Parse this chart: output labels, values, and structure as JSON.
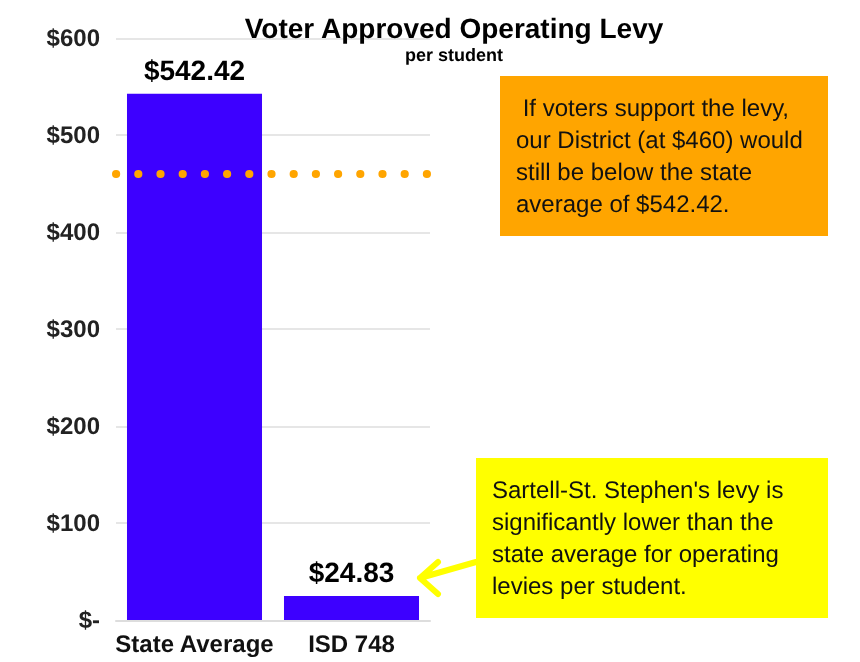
{
  "chart_data": {
    "type": "bar",
    "title": "Voter Approved Operating Levy",
    "subtitle": "per student",
    "categories": [
      "State Average",
      "ISD 748"
    ],
    "values": [
      542.42,
      24.83
    ],
    "color": "#3d00ff",
    "value_labels": [
      "$542.42",
      "$24.83"
    ],
    "ylim": [
      0,
      600
    ],
    "yticks": [
      {
        "value": 0,
        "label": "$-"
      },
      {
        "value": 100,
        "label": "$100"
      },
      {
        "value": 200,
        "label": "$200"
      },
      {
        "value": 300,
        "label": "$300"
      },
      {
        "value": 400,
        "label": "$400"
      },
      {
        "value": 500,
        "label": "$500"
      },
      {
        "value": 600,
        "label": "$600"
      }
    ],
    "grid": "y",
    "ref_lines": [
      {
        "axis": "y",
        "value": 460,
        "color": "#ffa500",
        "line_style": "dotted"
      }
    ],
    "annotations": [
      " If voters support the levy, our District (at $460) would still be below the state average of $542.42.",
      "Sartell-St. Stephen's levy is significantly lower than the state average for operating levies per student."
    ]
  }
}
